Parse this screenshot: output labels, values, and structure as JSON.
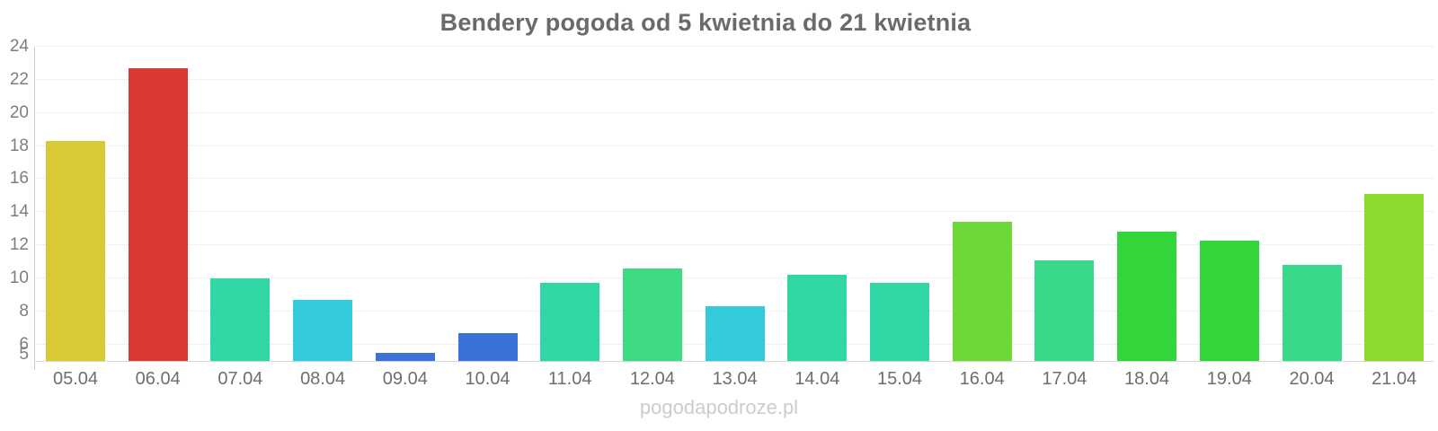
{
  "chart_data": {
    "type": "bar",
    "title": "Bendery pogoda od 5 kwietnia do 21 kwietnia",
    "categories": [
      "05.04",
      "06.04",
      "07.04",
      "08.04",
      "09.04",
      "10.04",
      "11.04",
      "12.04",
      "13.04",
      "14.04",
      "15.04",
      "16.04",
      "17.04",
      "18.04",
      "19.04",
      "20.04",
      "21.04"
    ],
    "values": [
      18.3,
      22.7,
      10.0,
      8.7,
      5.5,
      6.7,
      9.7,
      10.6,
      8.3,
      10.2,
      9.7,
      13.4,
      11.1,
      12.8,
      12.3,
      10.8,
      15.1
    ],
    "bar_colors": [
      "#d9ca35",
      "#d93a34",
      "#30d6a3",
      "#33cbd9",
      "#3a72d8",
      "#3a72d8",
      "#30d6a3",
      "#3edb82",
      "#33cbd9",
      "#30d6a3",
      "#30d6a3",
      "#6cd938",
      "#38d98a",
      "#32d63a",
      "#32d63a",
      "#38d98a",
      "#8cd930"
    ],
    "xlabel": "",
    "ylabel": "",
    "ylim": [
      5,
      24
    ],
    "yticks": [
      5,
      6,
      8,
      10,
      12,
      14,
      16,
      18,
      20,
      22,
      24
    ],
    "grid": "horizontal dotted lines at y ticks",
    "legend": "none"
  },
  "watermark": "pogodapodroze.pl",
  "colors": {
    "background": "#ffffff",
    "title_text": "#6a6a6a",
    "axis_tick_text": "#7d7d7d",
    "category_text": "#6e6e6e",
    "grid_line": "#e3e3e3",
    "axis_line": "#d6d6d6",
    "watermark_text": "#c9cdd0"
  }
}
